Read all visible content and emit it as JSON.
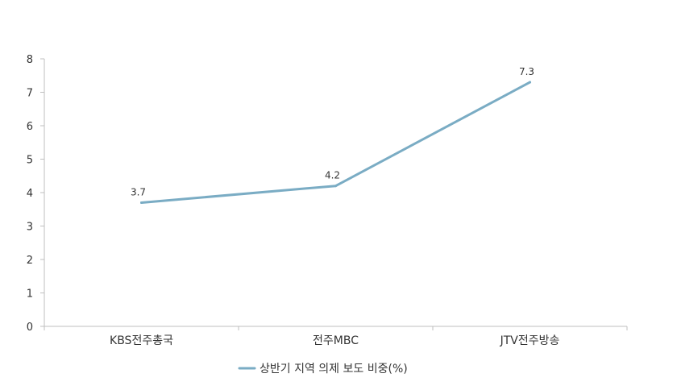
{
  "chart_data": {
    "type": "line",
    "categories": [
      "KBS전주총국",
      "전주MBC",
      "JTV전주방송"
    ],
    "series": [
      {
        "name": "상반기 지역 의제 보도 비중(%)",
        "values": [
          3.7,
          4.2,
          7.3
        ],
        "color": "#7AACC4"
      }
    ],
    "ylim": [
      0,
      8
    ],
    "yticks": [
      0,
      1,
      2,
      3,
      4,
      5,
      6,
      7,
      8
    ],
    "data_labels": [
      "3.7",
      "4.2",
      "7.3"
    ],
    "grid": false,
    "legend_position": "bottom"
  }
}
